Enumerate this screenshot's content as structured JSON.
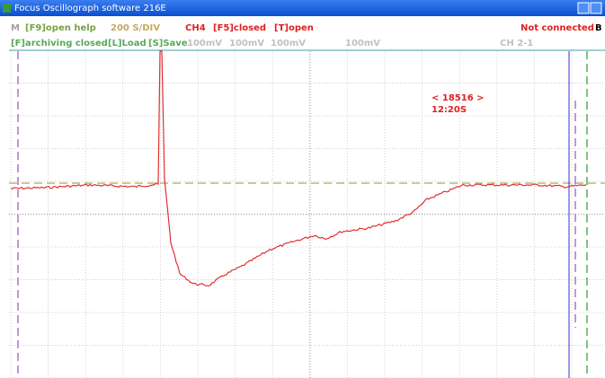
{
  "window": {
    "title": "Focus Oscillograph software 216E"
  },
  "status_row": {
    "mode": "M",
    "help": "[F9]open help",
    "rate": "200 S/DIV",
    "channel": "CH4",
    "f5": "[F5]closed",
    "trigger": "[T]open",
    "connection": "Not connected",
    "flag": "B"
  },
  "control_row": {
    "archive": "[F]archiving closed",
    "load": "[L]Load",
    "save": "[S]Save",
    "scales": [
      "100mV",
      "100mV",
      "100mV",
      "100mV"
    ],
    "channel_pair": "CH 2-1"
  },
  "annotation": {
    "counter": "< 18516 >",
    "time": "12:20S"
  }
}
